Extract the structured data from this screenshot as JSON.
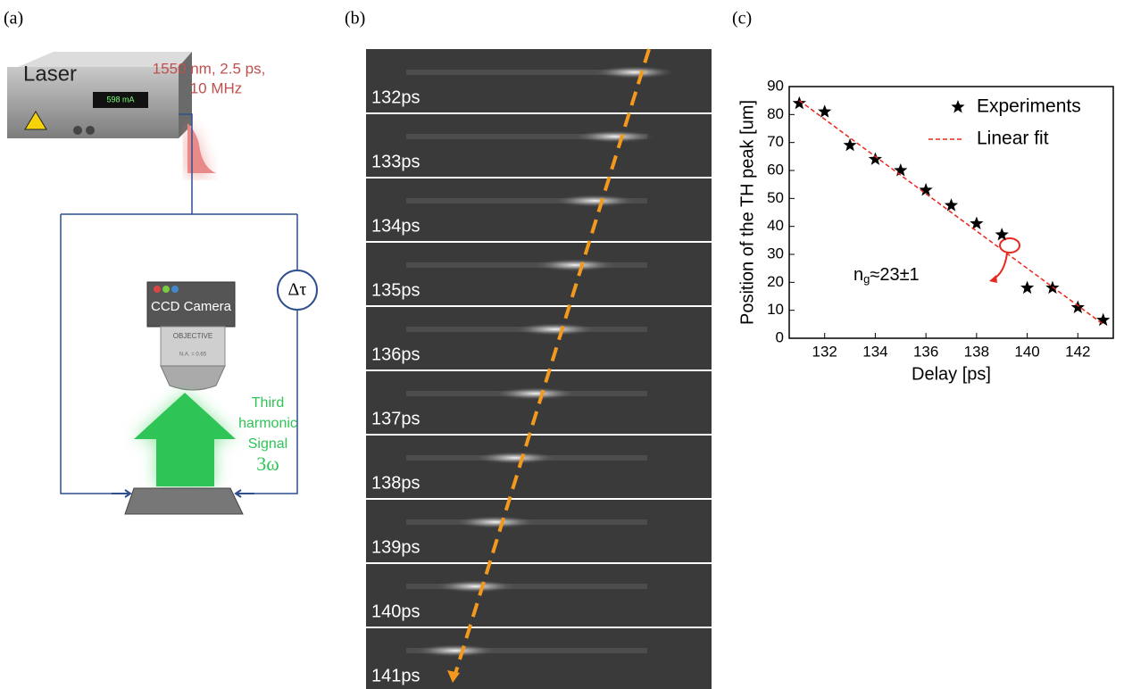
{
  "panel_a": {
    "label": "(a)",
    "laser": "Laser",
    "laser_display": "598 mA",
    "laser_specs": [
      "1550 nm, 2.5 ps,",
      "10 MHz"
    ],
    "camera": "CCD Camera",
    "objective": "OBJECTIVE",
    "aperture": "N.A. = 0.65",
    "delay": "Δτ",
    "signal": [
      "Third",
      "harmonic",
      "Signal"
    ],
    "frequency": "3ω"
  },
  "panel_b": {
    "label": "(b)",
    "frames": [
      "132ps",
      "133ps",
      "134ps",
      "135ps",
      "136ps",
      "137ps",
      "138ps",
      "139ps",
      "140ps",
      "141ps"
    ]
  },
  "panel_c": {
    "label": "(c)",
    "annotation": {
      "base": "n",
      "sub": "g",
      "rest": "≈23±1"
    }
  },
  "chart_data": {
    "type": "scatter",
    "x_label": "Delay [ps]",
    "y_label": "Position of the TH peak [um]",
    "series": [
      {
        "name": "Experiments",
        "color": "#000000",
        "x": [
          131,
          132,
          133,
          134,
          135,
          136,
          137,
          138,
          139,
          140,
          141,
          142,
          143
        ],
        "values": [
          84,
          81,
          69,
          64,
          60,
          53,
          47.5,
          41,
          37,
          18,
          18,
          11,
          6.5
        ]
      },
      {
        "name": "Linear fit",
        "color": "#e8281e",
        "x": [
          131,
          143
        ],
        "values": [
          85,
          5
        ]
      }
    ],
    "xlim": [
      130.6,
      143.4
    ],
    "xticks": [
      132,
      134,
      136,
      138,
      140,
      142
    ],
    "ylim": [
      0,
      90
    ],
    "yticks": [
      0,
      10,
      20,
      30,
      40,
      50,
      60,
      70,
      80,
      90
    ]
  }
}
